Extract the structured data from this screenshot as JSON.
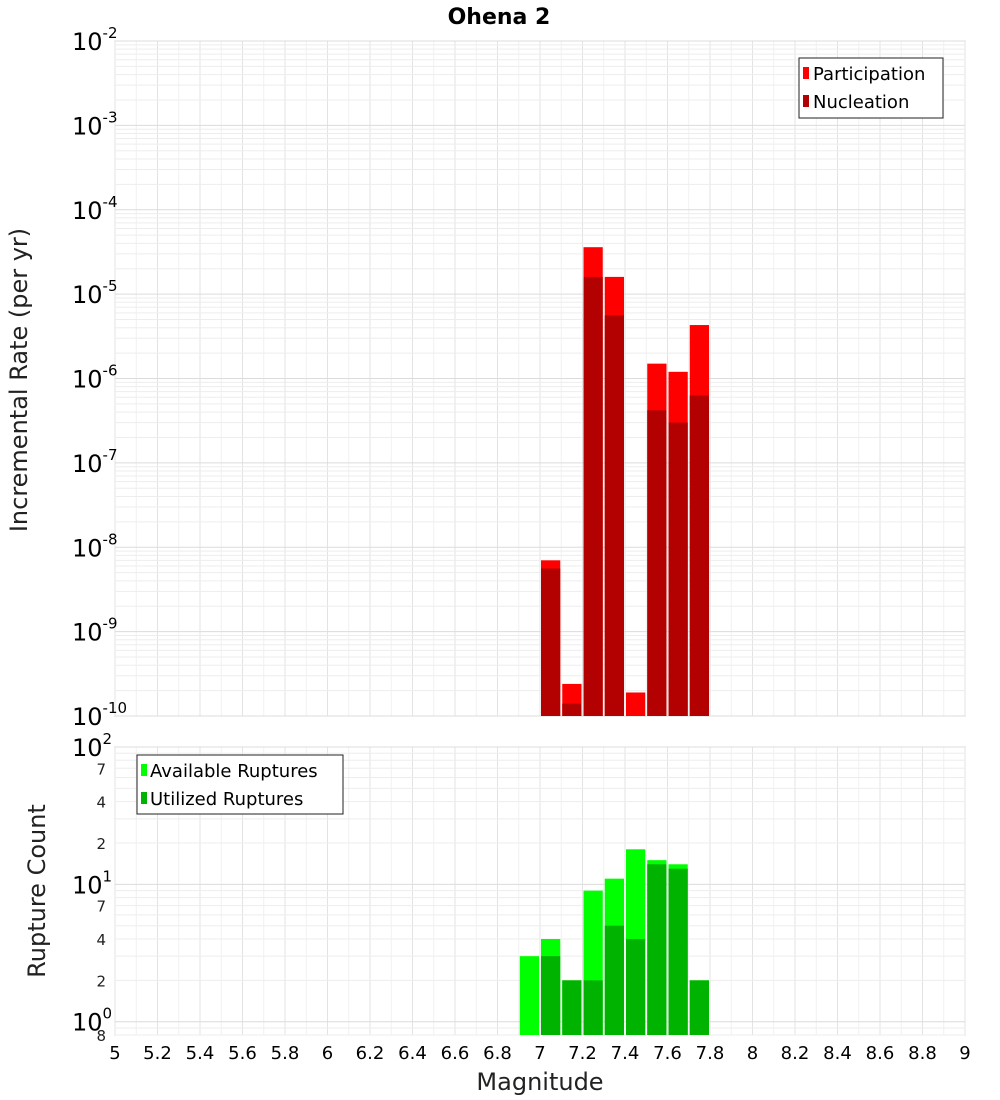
{
  "chart_data": [
    {
      "type": "bar",
      "title": "Ohena 2",
      "xlabel": "",
      "ylabel": "Incremental Rate (per yr)",
      "y_scale": "log",
      "xlim": [
        5,
        9
      ],
      "ylim": [
        1e-10,
        0.01
      ],
      "grid": true,
      "legend_position": "top-right",
      "x": [
        7.05,
        7.15,
        7.25,
        7.35,
        7.45,
        7.55,
        7.65,
        7.75
      ],
      "series": [
        {
          "name": "Participation",
          "color": "#ff0000",
          "values": [
            7e-09,
            2.4e-10,
            3.6e-05,
            1.6e-05,
            1.9e-10,
            1.5e-06,
            1.2e-06,
            4.3e-06
          ]
        },
        {
          "name": "Nucleation",
          "color": "#b30000",
          "values": [
            5.6e-09,
            1.4e-10,
            1.6e-05,
            5.6e-06,
            0,
            4.2e-07,
            3e-07,
            6.3e-07
          ]
        }
      ]
    },
    {
      "type": "bar",
      "title": "",
      "xlabel": "Magnitude",
      "ylabel": "Rupture Count",
      "y_scale": "log",
      "xlim": [
        5,
        9
      ],
      "ylim": [
        0.8,
        100
      ],
      "grid": true,
      "legend_position": "top-left",
      "x": [
        6.95,
        7.05,
        7.15,
        7.25,
        7.35,
        7.45,
        7.55,
        7.65,
        7.75
      ],
      "x_ticks": [
        "5",
        "5.2",
        "5.4",
        "5.6",
        "5.8",
        "6",
        "6.2",
        "6.4",
        "6.6",
        "6.8",
        "7",
        "7.2",
        "7.4",
        "7.6",
        "7.8",
        "8",
        "8.2",
        "8.4",
        "8.6",
        "8.8",
        "9"
      ],
      "series": [
        {
          "name": "Available Ruptures",
          "color": "#00ff00",
          "values": [
            3,
            4,
            2,
            9,
            11,
            18,
            15,
            14,
            2
          ]
        },
        {
          "name": "Utilized Ruptures",
          "color": "#00b300",
          "values": [
            0,
            3,
            2,
            2,
            5,
            4,
            14,
            13,
            2
          ]
        }
      ]
    }
  ]
}
